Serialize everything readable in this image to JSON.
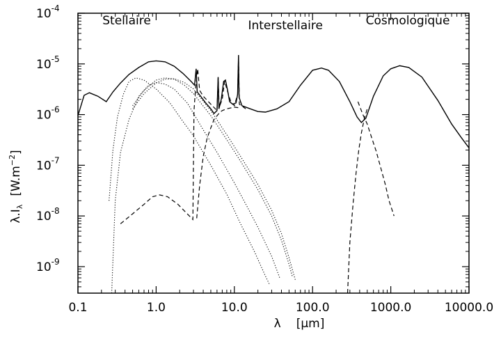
{
  "chart_data": {
    "type": "line",
    "xscale": "log",
    "yscale": "log",
    "xlim": [
      0.1,
      10000
    ],
    "ylim": [
      3e-10,
      0.0001
    ],
    "grid": false,
    "legend": "none",
    "x_ticks": [
      {
        "value": 0.1,
        "label": "0.1"
      },
      {
        "value": 1,
        "label": "1.0"
      },
      {
        "value": 10,
        "label": "10.0"
      },
      {
        "value": 100,
        "label": "100.0"
      },
      {
        "value": 1000,
        "label": "1000.0"
      },
      {
        "value": 10000,
        "label": "10000.0"
      }
    ],
    "y_ticks": [
      {
        "value": 1e-09,
        "exp": "-9"
      },
      {
        "value": 1e-08,
        "exp": "-8"
      },
      {
        "value": 1e-07,
        "exp": "-7"
      },
      {
        "value": 1e-06,
        "exp": "-6"
      },
      {
        "value": 1e-05,
        "exp": "-5"
      },
      {
        "value": 0.0001,
        "exp": "-4"
      }
    ],
    "y_tick_base": "10",
    "xlabel": {
      "symbol": "λ",
      "unit": "[μm]"
    },
    "ylabel": {
      "quantity": "λ.I",
      "sub": "λ",
      "unit_pre": "[W.m",
      "unit_exp": "−2",
      "unit_post": "]"
    },
    "annotations": [
      {
        "text": "Stellaire",
        "x": 0.42,
        "y": 6e-05
      },
      {
        "text": "Interstellaire",
        "x": 45,
        "y": 4.8e-05
      },
      {
        "text": "Cosmologique",
        "x": 1650,
        "y": 6e-05
      }
    ],
    "series": [
      {
        "style": "solid",
        "points": [
          [
            0.1,
            9.5e-07
          ],
          [
            0.12,
            2.4e-06
          ],
          [
            0.14,
            2.7e-06
          ],
          [
            0.18,
            2.3e-06
          ],
          [
            0.23,
            1.8e-06
          ],
          [
            0.28,
            2.8e-06
          ],
          [
            0.35,
            4.2e-06
          ],
          [
            0.45,
            6.2e-06
          ],
          [
            0.6,
            8.5e-06
          ],
          [
            0.8,
            1.1e-05
          ],
          [
            1,
            1.15e-05
          ],
          [
            1.3,
            1.1e-05
          ],
          [
            1.7,
            9e-06
          ],
          [
            2.2,
            6.5e-06
          ],
          [
            2.8,
            4.5e-06
          ],
          [
            3.1,
            3.8e-06
          ],
          [
            3.25,
            8e-06
          ],
          [
            3.35,
            2.8e-06
          ],
          [
            3.7,
            2.3e-06
          ],
          [
            4.3,
            1.7e-06
          ],
          [
            5,
            1.3e-06
          ],
          [
            5.5,
            1.05e-06
          ],
          [
            6,
            1.2e-06
          ],
          [
            6.2,
            5.5e-06
          ],
          [
            6.35,
            1.3e-06
          ],
          [
            6.8,
            2e-06
          ],
          [
            7.3,
            4.5e-06
          ],
          [
            7.7,
            4.8e-06
          ],
          [
            8.2,
            3e-06
          ],
          [
            8.7,
            1.8e-06
          ],
          [
            9.5,
            1.6e-06
          ],
          [
            10.5,
            1.7e-06
          ],
          [
            11,
            2.5e-06
          ],
          [
            11.3,
            1.5e-05
          ],
          [
            11.5,
            2.2e-06
          ],
          [
            12.5,
            1.5e-06
          ],
          [
            16,
            1.3e-06
          ],
          [
            20,
            1.15e-06
          ],
          [
            25,
            1.12e-06
          ],
          [
            35,
            1.3e-06
          ],
          [
            50,
            1.8e-06
          ],
          [
            70,
            3.8e-06
          ],
          [
            100,
            7.5e-06
          ],
          [
            130,
            8.3e-06
          ],
          [
            160,
            7.5e-06
          ],
          [
            220,
            4.5e-06
          ],
          [
            300,
            1.8e-06
          ],
          [
            370,
            9e-07
          ],
          [
            420,
            7e-07
          ],
          [
            480,
            8.5e-07
          ],
          [
            600,
            2.3e-06
          ],
          [
            800,
            5.8e-06
          ],
          [
            1000,
            8e-06
          ],
          [
            1300,
            9.2e-06
          ],
          [
            1700,
            8.5e-06
          ],
          [
            2500,
            5.5e-06
          ],
          [
            4000,
            1.9e-06
          ],
          [
            6000,
            6.5e-07
          ],
          [
            8000,
            3.5e-07
          ],
          [
            10000,
            2.2e-07
          ]
        ]
      },
      {
        "style": "dotted",
        "points": [
          [
            0.25,
            2e-08
          ],
          [
            0.28,
            2e-07
          ],
          [
            0.32,
            9e-07
          ],
          [
            0.38,
            2.5e-06
          ],
          [
            0.45,
            4.5e-06
          ],
          [
            0.55,
            5.3e-06
          ],
          [
            0.7,
            4.8e-06
          ],
          [
            1,
            3.2e-06
          ],
          [
            1.5,
            1.7e-06
          ],
          [
            2,
            9e-07
          ],
          [
            3,
            3.8e-07
          ],
          [
            5,
            1e-07
          ],
          [
            8,
            2.7e-08
          ],
          [
            12,
            7e-09
          ],
          [
            18,
            2e-09
          ],
          [
            25,
            6.5e-10
          ],
          [
            28,
            4.5e-10
          ]
        ]
      },
      {
        "style": "dotted",
        "points": [
          [
            0.27,
            3e-10
          ],
          [
            0.3,
            2e-08
          ],
          [
            0.35,
            1.8e-07
          ],
          [
            0.45,
            8e-07
          ],
          [
            0.6,
            2.3e-06
          ],
          [
            0.8,
            3.8e-06
          ],
          [
            1,
            4.3e-06
          ],
          [
            1.3,
            4e-06
          ],
          [
            1.7,
            3.2e-06
          ],
          [
            2.5,
            1.7e-06
          ],
          [
            4,
            5e-07
          ],
          [
            6,
            1.8e-07
          ],
          [
            10,
            4.5e-08
          ],
          [
            15,
            1.4e-08
          ],
          [
            20,
            6e-09
          ],
          [
            30,
            1.6e-09
          ],
          [
            38,
            6e-10
          ]
        ]
      },
      {
        "style": "dotted",
        "points": [
          [
            0.5,
            1.5e-06
          ],
          [
            0.7,
            3e-06
          ],
          [
            1,
            4.8e-06
          ],
          [
            1.3,
            5.3e-06
          ],
          [
            1.7,
            5e-06
          ],
          [
            2.3,
            3.8e-06
          ],
          [
            3,
            2.6e-06
          ],
          [
            5,
            9.5e-07
          ],
          [
            8,
            3.2e-07
          ],
          [
            12,
            1.2e-07
          ],
          [
            20,
            3.3e-08
          ],
          [
            30,
            1e-08
          ],
          [
            40,
            3.3e-09
          ],
          [
            50,
            1.1e-09
          ],
          [
            55,
            6.5e-10
          ]
        ]
      },
      {
        "style": "dotted",
        "points": [
          [
            0.5,
            1.3e-06
          ],
          [
            0.7,
            2.6e-06
          ],
          [
            1,
            4.2e-06
          ],
          [
            1.3,
            5e-06
          ],
          [
            1.7,
            5.1e-06
          ],
          [
            2.3,
            4.3e-06
          ],
          [
            3,
            3.2e-06
          ],
          [
            5,
            1.2e-06
          ],
          [
            8,
            4e-07
          ],
          [
            12,
            1.5e-07
          ],
          [
            20,
            4.2e-08
          ],
          [
            30,
            1.3e-08
          ],
          [
            40,
            4.5e-09
          ],
          [
            50,
            1.5e-09
          ],
          [
            60,
            5.5e-10
          ]
        ]
      },
      {
        "style": "dashed",
        "points": [
          [
            0.35,
            7e-09
          ],
          [
            0.5,
            1.1e-08
          ],
          [
            0.7,
            1.7e-08
          ],
          [
            0.9,
            2.4e-08
          ],
          [
            1.1,
            2.6e-08
          ],
          [
            1.4,
            2.4e-08
          ],
          [
            1.9,
            1.7e-08
          ],
          [
            2.5,
            1.1e-08
          ],
          [
            2.95,
            8.5e-09
          ],
          [
            3.05,
            1.2e-06
          ],
          [
            3.2,
            3.5e-06
          ],
          [
            3.4,
            8e-06
          ],
          [
            3.6,
            3e-06
          ],
          [
            4,
            2.3e-06
          ],
          [
            5,
            1.6e-06
          ],
          [
            6,
            1.2e-06
          ],
          [
            6.2,
            5.3e-06
          ],
          [
            6.4,
            1.4e-06
          ],
          [
            7,
            2e-06
          ],
          [
            7.5,
            4.6e-06
          ],
          [
            8,
            3.2e-06
          ],
          [
            9,
            1.8e-06
          ],
          [
            10,
            1.5e-06
          ],
          [
            11,
            2.5e-06
          ],
          [
            11.3,
            1.4e-05
          ],
          [
            11.6,
            1.6e-06
          ],
          [
            14,
            1.3e-06
          ]
        ]
      },
      {
        "style": "dashed",
        "points": [
          [
            3.3,
            9e-09
          ],
          [
            3.6,
            4e-08
          ],
          [
            4,
            1.5e-07
          ],
          [
            4.5,
            3.5e-07
          ],
          [
            5,
            5.5e-07
          ],
          [
            5.5,
            8e-07
          ],
          [
            6,
            9.5e-07
          ],
          [
            6.5,
            1.1e-06
          ],
          [
            7,
            1.2e-06
          ],
          [
            8,
            1.3e-06
          ],
          [
            10,
            1.4e-06
          ],
          [
            12,
            1.35e-06
          ]
        ]
      },
      {
        "style": "dashed",
        "points": [
          [
            280,
            3e-10
          ],
          [
            300,
            3e-09
          ],
          [
            330,
            1.8e-08
          ],
          [
            360,
            7e-08
          ],
          [
            390,
            2e-07
          ],
          [
            420,
            4.3e-07
          ],
          [
            460,
            8.5e-07
          ],
          [
            500,
            1.3e-06
          ]
        ]
      },
      {
        "style": "dashed",
        "points": [
          [
            380,
            1.8e-06
          ],
          [
            440,
            1e-06
          ],
          [
            500,
            6.5e-07
          ],
          [
            560,
            3.8e-07
          ],
          [
            650,
            1.9e-07
          ],
          [
            750,
            8.5e-08
          ],
          [
            850,
            4.2e-08
          ],
          [
            950,
            2e-08
          ],
          [
            1100,
            1e-08
          ]
        ]
      }
    ]
  }
}
